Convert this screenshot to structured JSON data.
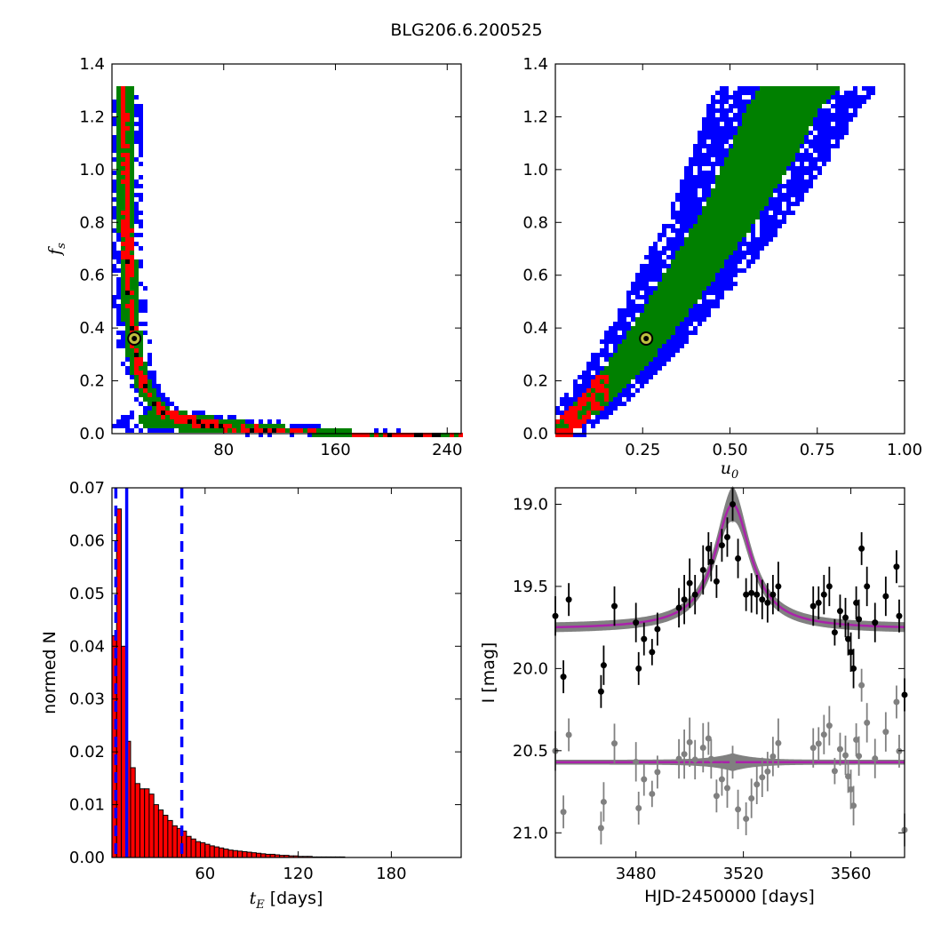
{
  "figure": {
    "title": "BLG206.6.200525"
  },
  "colors": {
    "blue": "#0000ff",
    "green": "#008000",
    "red": "#ff0000",
    "black": "#000000",
    "gray": "#808080",
    "magenta": "#aa22aa",
    "marker_fill": "#bfbf3f"
  },
  "chart_data": [
    {
      "id": "tE-fs",
      "type": "heatmap",
      "xlabel": "",
      "ylabel": "f_s",
      "ylabel_main": "f",
      "ylabel_sub": "s",
      "xlim": [
        0,
        250
      ],
      "ylim": [
        0,
        1.4
      ],
      "xticks": [
        80,
        160,
        240
      ],
      "yticks": [
        0.0,
        0.2,
        0.4,
        0.6,
        0.8,
        1.0,
        1.2,
        1.4
      ],
      "ytick_labels": [
        "0.0",
        "0.2",
        "0.4",
        "0.6",
        "0.8",
        "1.0",
        "1.2",
        "1.4"
      ],
      "best_fit": {
        "x": 16,
        "y": 0.36
      },
      "ridge": [
        [
          7,
          1.33
        ],
        [
          8,
          1.1
        ],
        [
          9,
          0.9
        ],
        [
          10,
          0.75
        ],
        [
          11,
          0.6
        ],
        [
          13,
          0.5
        ],
        [
          15,
          0.4
        ],
        [
          17,
          0.33
        ],
        [
          20,
          0.25
        ],
        [
          24,
          0.2
        ],
        [
          30,
          0.15
        ],
        [
          38,
          0.1
        ],
        [
          48,
          0.07
        ],
        [
          65,
          0.05
        ],
        [
          90,
          0.04
        ],
        [
          120,
          0.03
        ],
        [
          160,
          0.025
        ],
        [
          200,
          0.02
        ],
        [
          222,
          0.02
        ]
      ]
    },
    {
      "id": "u0-fs",
      "type": "heatmap",
      "xlabel": "u_0",
      "xlabel_main": "u",
      "xlabel_sub": "0",
      "ylabel": "",
      "xlim": [
        0,
        1.0
      ],
      "ylim": [
        0,
        1.4
      ],
      "xticks": [
        0.25,
        0.5,
        0.75,
        1.0
      ],
      "xtick_labels": [
        "0.25",
        "0.50",
        "0.75",
        "1.00"
      ],
      "yticks": [
        0.0,
        0.2,
        0.4,
        0.6,
        0.8,
        1.0,
        1.2,
        1.4
      ],
      "ytick_labels": [
        "0.0",
        "0.2",
        "0.4",
        "0.6",
        "0.8",
        "1.0",
        "1.2",
        "1.4"
      ],
      "best_fit": {
        "x": 0.26,
        "y": 0.36
      },
      "band": [
        [
          0.0,
          0.02
        ],
        [
          0.1,
          0.12
        ],
        [
          0.2,
          0.27
        ],
        [
          0.3,
          0.45
        ],
        [
          0.4,
          0.65
        ],
        [
          0.5,
          0.85
        ],
        [
          0.6,
          1.1
        ],
        [
          0.65,
          1.25
        ],
        [
          0.7,
          1.33
        ]
      ]
    },
    {
      "id": "tE-hist",
      "type": "bar",
      "xlabel": "t_E [days]",
      "xlabel_main": "t",
      "xlabel_sub": "E",
      "xlabel_rest": " [days]",
      "ylabel": "normed N",
      "xlim": [
        0,
        225
      ],
      "ylim": [
        0,
        0.07
      ],
      "xticks": [
        60,
        120,
        180
      ],
      "yticks": [
        0.0,
        0.01,
        0.02,
        0.03,
        0.04,
        0.05,
        0.06,
        0.07
      ],
      "ytick_labels": [
        "0.00",
        "0.01",
        "0.02",
        "0.03",
        "0.04",
        "0.05",
        "0.06",
        "0.07"
      ],
      "bin_width": 3.0,
      "values": [
        0.042,
        0.066,
        0.04,
        0.022,
        0.017,
        0.014,
        0.013,
        0.013,
        0.012,
        0.01,
        0.009,
        0.008,
        0.007,
        0.006,
        0.0055,
        0.005,
        0.004,
        0.0035,
        0.003,
        0.0028,
        0.0025,
        0.0022,
        0.002,
        0.0018,
        0.0016,
        0.0014,
        0.0013,
        0.0012,
        0.0011,
        0.001,
        0.0009,
        0.0008,
        0.0007,
        0.0006,
        0.0006,
        0.0005,
        0.0004,
        0.0004,
        0.0003,
        0.0003,
        0.0002,
        0.0002,
        0.0002,
        0.0001,
        0.0001,
        0.0001,
        0.0001,
        0.0001,
        0.0001,
        0.0001
      ],
      "vlines": [
        {
          "x": 2.5,
          "style": "dashed"
        },
        {
          "x": 9.5,
          "style": "solid"
        },
        {
          "x": 45,
          "style": "dashed"
        }
      ]
    },
    {
      "id": "lightcurve",
      "type": "scatter",
      "xlabel": "HJD-2450000 [days]",
      "ylabel": "I [mag]",
      "xlim": [
        3450,
        3580
      ],
      "ylim": [
        21.15,
        18.9
      ],
      "xticks": [
        3480,
        3520,
        3560
      ],
      "yticks": [
        19.0,
        19.5,
        20.0,
        20.5,
        21.0
      ],
      "ytick_labels": [
        "19.0",
        "19.5",
        "20.0",
        "20.5",
        "21.0"
      ],
      "model": {
        "baseline": 19.76,
        "t0": 3516,
        "peak": 19.0,
        "tE": 9
      },
      "residual_offset": 20.57,
      "points": [
        {
          "t": 3450,
          "m": 19.68,
          "e": 0.12
        },
        {
          "t": 3453,
          "m": 20.05,
          "e": 0.1
        },
        {
          "t": 3455,
          "m": 19.58,
          "e": 0.1
        },
        {
          "t": 3467,
          "m": 20.14,
          "e": 0.1
        },
        {
          "t": 3468,
          "m": 19.98,
          "e": 0.12
        },
        {
          "t": 3472,
          "m": 19.62,
          "e": 0.12
        },
        {
          "t": 3480,
          "m": 19.72,
          "e": 0.12
        },
        {
          "t": 3481,
          "m": 20.0,
          "e": 0.1
        },
        {
          "t": 3483,
          "m": 19.82,
          "e": 0.1
        },
        {
          "t": 3486,
          "m": 19.9,
          "e": 0.08
        },
        {
          "t": 3488,
          "m": 19.76,
          "e": 0.1
        },
        {
          "t": 3496,
          "m": 19.63,
          "e": 0.12
        },
        {
          "t": 3498,
          "m": 19.58,
          "e": 0.15
        },
        {
          "t": 3500,
          "m": 19.48,
          "e": 0.15
        },
        {
          "t": 3502,
          "m": 19.55,
          "e": 0.12
        },
        {
          "t": 3505,
          "m": 19.4,
          "e": 0.15
        },
        {
          "t": 3507,
          "m": 19.27,
          "e": 0.1
        },
        {
          "t": 3508,
          "m": 19.35,
          "e": 0.12
        },
        {
          "t": 3510,
          "m": 19.47,
          "e": 0.1
        },
        {
          "t": 3512,
          "m": 19.25,
          "e": 0.1
        },
        {
          "t": 3514,
          "m": 19.2,
          "e": 0.12
        },
        {
          "t": 3516,
          "m": 19.0,
          "e": 0.1
        },
        {
          "t": 3518,
          "m": 19.33,
          "e": 0.12
        },
        {
          "t": 3521,
          "m": 19.55,
          "e": 0.1
        },
        {
          "t": 3523,
          "m": 19.54,
          "e": 0.12
        },
        {
          "t": 3525,
          "m": 19.55,
          "e": 0.12
        },
        {
          "t": 3527,
          "m": 19.58,
          "e": 0.12
        },
        {
          "t": 3529,
          "m": 19.6,
          "e": 0.12
        },
        {
          "t": 3531,
          "m": 19.55,
          "e": 0.12
        },
        {
          "t": 3533,
          "m": 19.5,
          "e": 0.15
        },
        {
          "t": 3546,
          "m": 19.62,
          "e": 0.12
        },
        {
          "t": 3548,
          "m": 19.6,
          "e": 0.1
        },
        {
          "t": 3550,
          "m": 19.55,
          "e": 0.12
        },
        {
          "t": 3552,
          "m": 19.5,
          "e": 0.12
        },
        {
          "t": 3554,
          "m": 19.78,
          "e": 0.08
        },
        {
          "t": 3556,
          "m": 19.65,
          "e": 0.1
        },
        {
          "t": 3558,
          "m": 19.69,
          "e": 0.12
        },
        {
          "t": 3559,
          "m": 19.82,
          "e": 0.1
        },
        {
          "t": 3560,
          "m": 19.9,
          "e": 0.12
        },
        {
          "t": 3561,
          "m": 20.0,
          "e": 0.12
        },
        {
          "t": 3562,
          "m": 19.6,
          "e": 0.1
        },
        {
          "t": 3563,
          "m": 19.7,
          "e": 0.12
        },
        {
          "t": 3564,
          "m": 19.27,
          "e": 0.1
        },
        {
          "t": 3566,
          "m": 19.5,
          "e": 0.12
        },
        {
          "t": 3569,
          "m": 19.72,
          "e": 0.12
        },
        {
          "t": 3573,
          "m": 19.56,
          "e": 0.12
        },
        {
          "t": 3577,
          "m": 19.38,
          "e": 0.1
        },
        {
          "t": 3578,
          "m": 19.68,
          "e": 0.1
        },
        {
          "t": 3580,
          "m": 20.16,
          "e": 0.1
        }
      ]
    }
  ]
}
